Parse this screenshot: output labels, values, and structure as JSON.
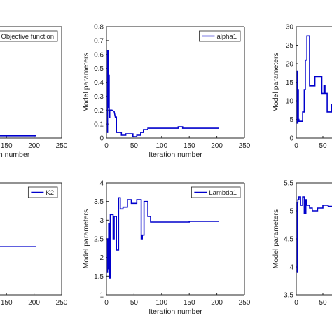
{
  "chart_data": [
    {
      "type": "line",
      "legend": "Objective function",
      "legend_position": "top-right",
      "xlabel": "Iteration number",
      "ylabel": "",
      "xlim": [
        0,
        250
      ],
      "xticks": [
        150,
        200,
        250
      ],
      "xtick_labels": [
        "150",
        "200",
        "250"
      ],
      "ylim": [
        0,
        1
      ],
      "yticks": [],
      "ytick_labels": [],
      "grid": false,
      "series": [
        {
          "name": "Objective function",
          "x": [
            0,
            203
          ],
          "y": [
            0.02,
            0.02
          ]
        }
      ]
    },
    {
      "type": "line",
      "legend": "alpha1",
      "legend_position": "top-right",
      "xlabel": "Iteration number",
      "ylabel": "Model parameters",
      "xlim": [
        0,
        250
      ],
      "xticks": [
        0,
        50,
        100,
        150,
        200,
        250
      ],
      "xtick_labels": [
        "0",
        "50",
        "100",
        "150",
        "200",
        "250"
      ],
      "ylim": [
        0,
        0.8
      ],
      "yticks": [
        0,
        0.1,
        0.2,
        0.3,
        0.4,
        0.5,
        0.6,
        0.7,
        0.8
      ],
      "ytick_labels": [
        "0",
        "0.1",
        "0.2",
        "0.3",
        "0.4",
        "0.5",
        "0.6",
        "0.7",
        "0.8"
      ],
      "grid": false,
      "series": [
        {
          "name": "alpha1",
          "x": [
            1,
            2,
            2,
            3,
            3,
            4,
            4,
            5,
            5,
            6,
            6,
            8,
            10,
            14,
            16,
            18,
            18,
            19,
            22,
            27,
            27,
            35,
            35,
            48,
            48,
            55,
            55,
            62,
            62,
            67,
            67,
            75,
            75,
            130,
            130,
            138,
            138,
            203
          ],
          "y": [
            0.04,
            0.04,
            0.63,
            0.63,
            0.22,
            0.22,
            0.45,
            0.45,
            0.15,
            0.15,
            0.2,
            0.2,
            0.2,
            0.19,
            0.15,
            0.15,
            0.04,
            0.04,
            0.04,
            0.04,
            0.02,
            0.02,
            0.03,
            0.03,
            0.01,
            0.01,
            0.02,
            0.02,
            0.04,
            0.04,
            0.06,
            0.06,
            0.07,
            0.07,
            0.08,
            0.08,
            0.07,
            0.07
          ]
        }
      ]
    },
    {
      "type": "line",
      "legend": "",
      "xlabel": "",
      "ylabel": "Model parameters",
      "xlim": [
        0,
        95
      ],
      "xticks": [
        0,
        50
      ],
      "xtick_labels": [
        "0",
        "50"
      ],
      "ylim": [
        0,
        30
      ],
      "yticks": [
        0,
        5,
        10,
        15,
        20,
        25,
        30
      ],
      "ytick_labels": [
        "0",
        "5",
        "10",
        "15",
        "20",
        "25",
        "30"
      ],
      "grid": false,
      "series": [
        {
          "name": "",
          "x": [
            1,
            2,
            2,
            3,
            3,
            4,
            4,
            5,
            5,
            6,
            6,
            12,
            12,
            15,
            15,
            17,
            17,
            20,
            20,
            25,
            25,
            35,
            35,
            48,
            48,
            52,
            52,
            54,
            54,
            58,
            58,
            66,
            66,
            70,
            70,
            75
          ],
          "y": [
            18,
            18,
            4,
            4,
            13,
            13,
            5,
            5,
            4.5,
            4.5,
            4.5,
            4.5,
            7,
            7,
            13,
            13,
            21,
            21,
            27.5,
            27.5,
            14,
            14,
            16.5,
            16.5,
            12,
            12,
            14,
            14,
            12,
            12,
            7,
            7,
            9,
            9,
            11.5,
            11.5
          ]
        }
      ]
    },
    {
      "type": "line",
      "legend": "K2",
      "legend_position": "top-right",
      "xlabel": "",
      "ylabel": "",
      "xlim": [
        0,
        250
      ],
      "xticks": [
        150,
        200,
        250
      ],
      "xtick_labels": [
        "150",
        "200",
        "250"
      ],
      "ylim": [
        0,
        1
      ],
      "yticks": [],
      "ytick_labels": [],
      "grid": false,
      "series": [
        {
          "name": "K2",
          "x": [
            0,
            203
          ],
          "y": [
            0.43,
            0.43
          ]
        }
      ]
    },
    {
      "type": "line",
      "legend": "Lambda1",
      "legend_position": "top-right",
      "xlabel": "Iteration number",
      "ylabel": "Model parameters",
      "xlim": [
        0,
        250
      ],
      "xticks": [
        0,
        50,
        100,
        150,
        200,
        250
      ],
      "xtick_labels": [
        "0",
        "50",
        "100",
        "150",
        "200",
        "250"
      ],
      "ylim": [
        1,
        4
      ],
      "yticks": [
        1,
        1.5,
        2,
        2.5,
        3,
        3.5,
        4
      ],
      "ytick_labels": [
        "1",
        "1.5",
        "2",
        "2.5",
        "3",
        "3.5",
        "4"
      ],
      "grid": false,
      "series": [
        {
          "name": "Lambda1",
          "x": [
            1,
            2,
            2,
            3,
            3,
            4,
            4,
            5,
            5,
            7,
            7,
            12,
            12,
            14,
            14,
            18,
            18,
            22,
            22,
            25,
            25,
            30,
            30,
            38,
            38,
            45,
            45,
            55,
            55,
            63,
            63,
            65,
            65,
            68,
            68,
            75,
            75,
            80,
            80,
            120,
            120,
            150,
            150,
            203
          ],
          "y": [
            1.6,
            1.6,
            2.5,
            2.5,
            1.7,
            1.7,
            2.9,
            2.9,
            1.45,
            1.45,
            3.15,
            3.15,
            2.5,
            2.5,
            3.1,
            3.1,
            2.2,
            2.2,
            3.6,
            3.6,
            3.3,
            3.3,
            3.35,
            3.35,
            3.55,
            3.55,
            3.45,
            3.45,
            3.55,
            3.55,
            2.5,
            2.5,
            2.6,
            2.6,
            3.5,
            3.5,
            3.1,
            3.1,
            2.95,
            2.95,
            2.95,
            2.95,
            2.97,
            2.97
          ]
        }
      ]
    },
    {
      "type": "line",
      "legend": "",
      "xlabel": "",
      "ylabel": "Model parameters",
      "xlim": [
        0,
        95
      ],
      "xticks": [
        0,
        50
      ],
      "xtick_labels": [
        "0",
        "50"
      ],
      "ylim": [
        3.5,
        5.5
      ],
      "yticks": [
        3.5,
        4,
        4.5,
        5,
        5.5
      ],
      "ytick_labels": [
        "3.5",
        "4",
        "4.5",
        "5",
        "5.5"
      ],
      "grid": false,
      "series": [
        {
          "name": "",
          "x": [
            1,
            2,
            2,
            3,
            3,
            5,
            5,
            8,
            8,
            12,
            12,
            15,
            15,
            18,
            18,
            20,
            20,
            25,
            25,
            30,
            30,
            40,
            40,
            50,
            50,
            60,
            60,
            75
          ],
          "y": [
            3.9,
            3.9,
            5.15,
            5.15,
            5.2,
            5.2,
            5.25,
            5.25,
            5.1,
            5.1,
            5.25,
            5.25,
            4.95,
            4.95,
            5.2,
            5.2,
            5.1,
            5.1,
            5.05,
            5.05,
            5.0,
            5.0,
            5.05,
            5.05,
            5.1,
            5.1,
            5.08,
            5.08
          ]
        }
      ]
    }
  ]
}
